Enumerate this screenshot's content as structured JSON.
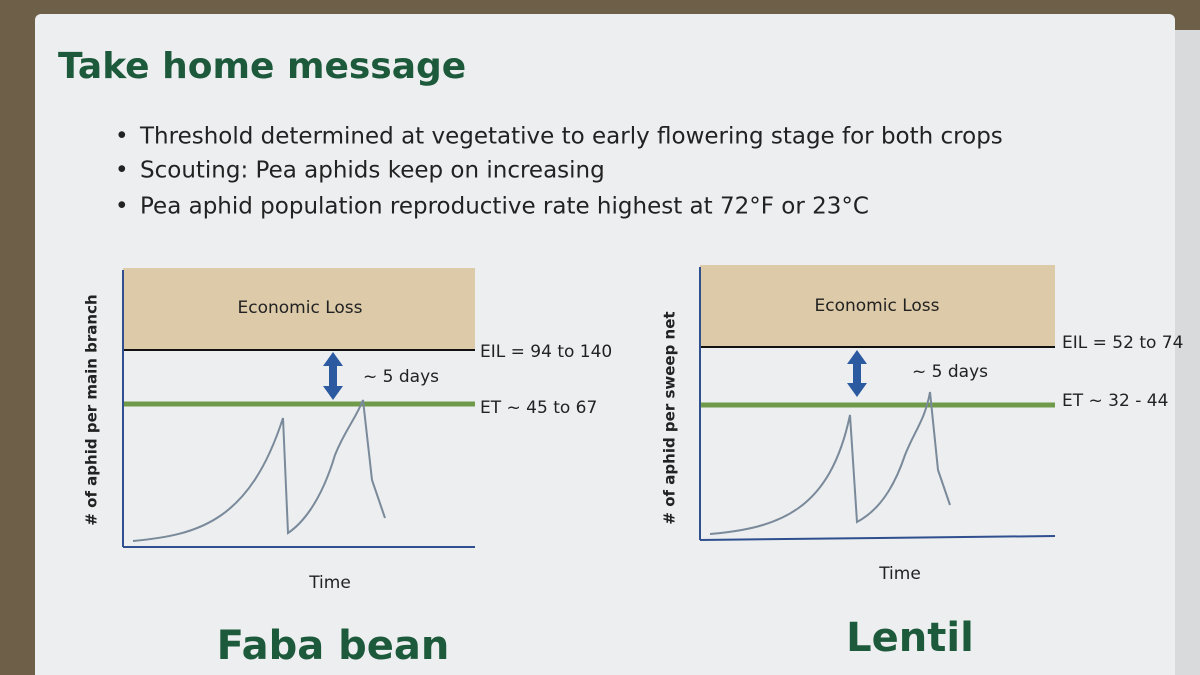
{
  "header": {
    "title": "Take home message"
  },
  "bullets": [
    "Threshold determined at vegetative to early flowering stage for both crops",
    "Scouting: Pea aphids keep on increasing",
    "Pea aphid population reproductive rate highest at 72°F or 23°C"
  ],
  "diagrams": [
    {
      "loss_label": "Economic Loss",
      "eil_label": "EIL = 94 to 140",
      "et_label": "ET ~ 45 to 67",
      "interval_label": "~ 5 days",
      "y_label": "# of aphid per main branch",
      "x_label": "Time",
      "crop": "Faba bean"
    },
    {
      "loss_label": "Economic Loss",
      "eil_label": "EIL = 52 to 74",
      "et_label": "ET ~ 32 - 44",
      "interval_label": "~ 5 days",
      "y_label": "# of aphid per sweep net",
      "x_label": "Time",
      "crop": "Lentil"
    }
  ]
}
